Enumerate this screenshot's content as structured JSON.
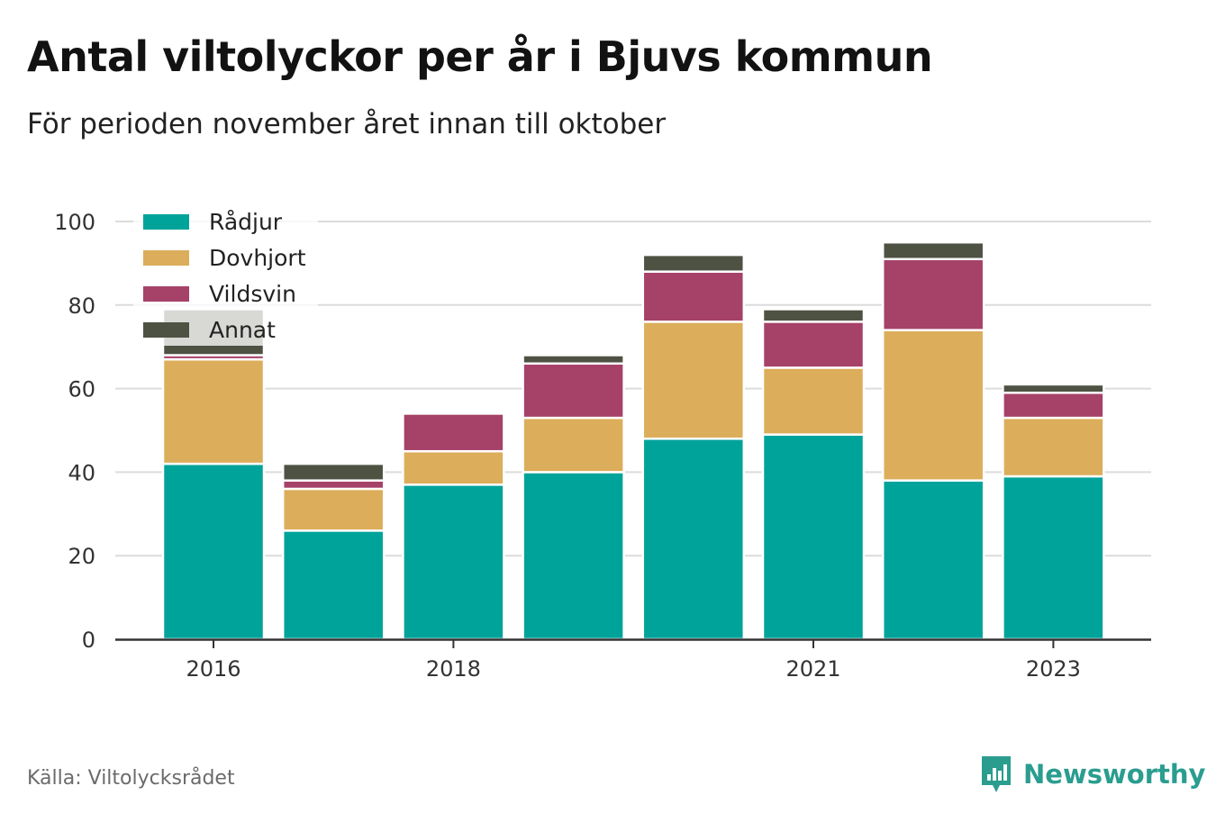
{
  "title": "Antal viltolyckor per år i Bjuvs kommun",
  "subtitle": "För perioden november året innan till oktober",
  "source": "Källa: Viltolycksrådet",
  "brand": {
    "name": "Newsworthy",
    "icon": "newsworthy-logo-icon",
    "color": "#2a9d8f"
  },
  "chart_data": {
    "type": "bar",
    "stacked": true,
    "categories": [
      "2016",
      "2017",
      "2018",
      "2019",
      "2020",
      "2021",
      "2022",
      "2023"
    ],
    "x_tick_labels": [
      "2016",
      "2018",
      "2021",
      "2023"
    ],
    "ylim": [
      0,
      100
    ],
    "y_ticks": [
      0,
      20,
      40,
      60,
      80,
      100
    ],
    "grid": true,
    "legend_position": "top-left",
    "series": [
      {
        "name": "Rådjur",
        "color": "#00a39a",
        "values": [
          42,
          26,
          37,
          40,
          48,
          49,
          38,
          39
        ]
      },
      {
        "name": "Dovhjort",
        "color": "#dcad5b",
        "values": [
          25,
          10,
          8,
          13,
          28,
          16,
          36,
          14
        ]
      },
      {
        "name": "Vildsvin",
        "color": "#a64168",
        "values": [
          1,
          2,
          9,
          13,
          12,
          11,
          17,
          6
        ]
      },
      {
        "name": "Annat",
        "color": "#4e5243",
        "values": [
          11,
          4,
          0,
          2,
          4,
          3,
          4,
          2
        ]
      }
    ]
  }
}
